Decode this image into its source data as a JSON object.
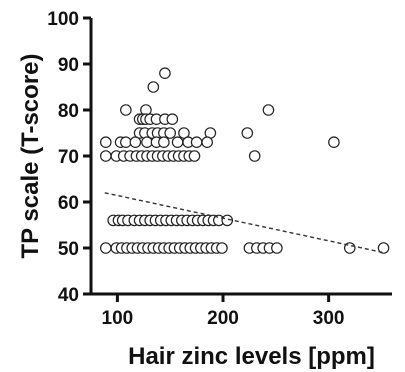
{
  "chart_data": {
    "type": "scatter",
    "xlabel": "Hair zinc levels [ppm]",
    "ylabel": "TP scale (T-score)",
    "xlim": [
      75,
      360
    ],
    "ylim": [
      40,
      100
    ],
    "xticks": [
      100,
      200,
      300
    ],
    "yticks": [
      40,
      50,
      60,
      70,
      80,
      90,
      100
    ],
    "grid": false,
    "trendline": {
      "style": "dashed",
      "points": [
        [
          88,
          62
        ],
        [
          352,
          49
        ]
      ]
    },
    "points": [
      [
        145,
        88
      ],
      [
        134,
        85
      ],
      [
        108,
        80
      ],
      [
        127,
        80
      ],
      [
        243,
        80
      ],
      [
        121,
        78
      ],
      [
        124,
        78
      ],
      [
        127,
        78
      ],
      [
        131,
        78
      ],
      [
        137,
        78
      ],
      [
        145,
        78
      ],
      [
        152,
        78
      ],
      [
        121,
        75
      ],
      [
        126,
        75
      ],
      [
        133,
        75
      ],
      [
        138,
        75
      ],
      [
        144,
        75
      ],
      [
        150,
        75
      ],
      [
        163,
        75
      ],
      [
        188,
        75
      ],
      [
        223,
        75
      ],
      [
        89,
        73
      ],
      [
        103,
        73
      ],
      [
        108,
        73
      ],
      [
        117,
        73
      ],
      [
        128,
        73
      ],
      [
        137,
        73
      ],
      [
        144,
        73
      ],
      [
        157,
        73
      ],
      [
        167,
        73
      ],
      [
        175,
        73
      ],
      [
        185,
        73
      ],
      [
        305,
        73
      ],
      [
        89,
        70
      ],
      [
        99,
        70
      ],
      [
        106,
        70
      ],
      [
        112,
        70
      ],
      [
        118,
        70
      ],
      [
        123,
        70
      ],
      [
        128,
        70
      ],
      [
        133,
        70
      ],
      [
        138,
        70
      ],
      [
        143,
        70
      ],
      [
        148,
        70
      ],
      [
        153,
        70
      ],
      [
        158,
        70
      ],
      [
        163,
        70
      ],
      [
        168,
        70
      ],
      [
        173,
        70
      ],
      [
        230,
        70
      ],
      [
        96,
        56
      ],
      [
        101,
        56
      ],
      [
        105,
        56
      ],
      [
        110,
        56
      ],
      [
        116,
        56
      ],
      [
        121,
        56
      ],
      [
        126,
        56
      ],
      [
        131,
        56
      ],
      [
        136,
        56
      ],
      [
        141,
        56
      ],
      [
        146,
        56
      ],
      [
        151,
        56
      ],
      [
        156,
        56
      ],
      [
        161,
        56
      ],
      [
        166,
        56
      ],
      [
        171,
        56
      ],
      [
        176,
        56
      ],
      [
        181,
        56
      ],
      [
        186,
        56
      ],
      [
        191,
        56
      ],
      [
        196,
        56
      ],
      [
        204,
        56
      ],
      [
        89,
        50
      ],
      [
        99,
        50
      ],
      [
        104,
        50
      ],
      [
        109,
        50
      ],
      [
        114,
        50
      ],
      [
        119,
        50
      ],
      [
        124,
        50
      ],
      [
        129,
        50
      ],
      [
        134,
        50
      ],
      [
        139,
        50
      ],
      [
        144,
        50
      ],
      [
        149,
        50
      ],
      [
        154,
        50
      ],
      [
        159,
        50
      ],
      [
        164,
        50
      ],
      [
        169,
        50
      ],
      [
        174,
        50
      ],
      [
        179,
        50
      ],
      [
        184,
        50
      ],
      [
        189,
        50
      ],
      [
        194,
        50
      ],
      [
        199,
        50
      ],
      [
        225,
        50
      ],
      [
        232,
        50
      ],
      [
        238,
        50
      ],
      [
        244,
        50
      ],
      [
        251,
        50
      ],
      [
        320,
        50
      ],
      [
        352,
        50
      ]
    ]
  }
}
